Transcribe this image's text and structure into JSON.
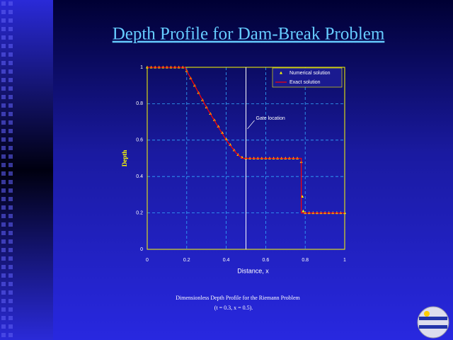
{
  "chart_data": {
    "type": "line",
    "title": "Depth Profile for Dam-Break Problem",
    "xlabel": "Distance, x",
    "ylabel": "Depth",
    "caption": [
      "Dimensionless Depth Profile for the Riemann Problem",
      "(t = 0.3, x = 0.5)."
    ],
    "annotations": [
      {
        "text": "Gate location",
        "x": 0.5
      }
    ],
    "xlim": [
      0,
      1
    ],
    "xticks": [
      0,
      0.2,
      0.4,
      0.6,
      0.8,
      1
    ],
    "ylim": [
      0,
      1
    ],
    "yticks": [
      0,
      0.2,
      0.4,
      0.6,
      0.8,
      1
    ],
    "grid": true,
    "legend": "upper right",
    "series": [
      {
        "name": "Numerical solution",
        "color": "#ffff00",
        "marker": "triangle",
        "x": [
          0,
          0.02,
          0.04,
          0.06,
          0.08,
          0.1,
          0.12,
          0.14,
          0.16,
          0.18,
          0.2,
          0.22,
          0.24,
          0.26,
          0.28,
          0.3,
          0.32,
          0.34,
          0.36,
          0.38,
          0.4,
          0.42,
          0.44,
          0.46,
          0.48,
          0.5,
          0.52,
          0.54,
          0.56,
          0.58,
          0.6,
          0.62,
          0.64,
          0.66,
          0.68,
          0.7,
          0.72,
          0.74,
          0.76,
          0.78,
          0.785,
          0.79,
          0.8,
          0.82,
          0.84,
          0.86,
          0.88,
          0.9,
          0.92,
          0.94,
          0.96,
          0.98,
          1
        ],
        "values": [
          1,
          1,
          1,
          1,
          1,
          1,
          1,
          1,
          1,
          1,
          0.98,
          0.94,
          0.9,
          0.86,
          0.82,
          0.78,
          0.745,
          0.71,
          0.675,
          0.64,
          0.605,
          0.575,
          0.545,
          0.52,
          0.505,
          0.5,
          0.5,
          0.5,
          0.5,
          0.5,
          0.5,
          0.5,
          0.5,
          0.5,
          0.5,
          0.5,
          0.5,
          0.5,
          0.5,
          0.48,
          0.29,
          0.21,
          0.2,
          0.2,
          0.2,
          0.2,
          0.2,
          0.2,
          0.2,
          0.2,
          0.2,
          0.2,
          0.2
        ]
      },
      {
        "name": "Exact solution",
        "color": "#ff0000",
        "marker": "line",
        "x": [
          0,
          0.19,
          0.25,
          0.3,
          0.35,
          0.4,
          0.45,
          0.48,
          0.78,
          0.78,
          1
        ],
        "values": [
          1,
          1,
          0.88,
          0.78,
          0.69,
          0.6,
          0.53,
          0.5,
          0.5,
          0.2,
          0.2
        ]
      }
    ]
  }
}
